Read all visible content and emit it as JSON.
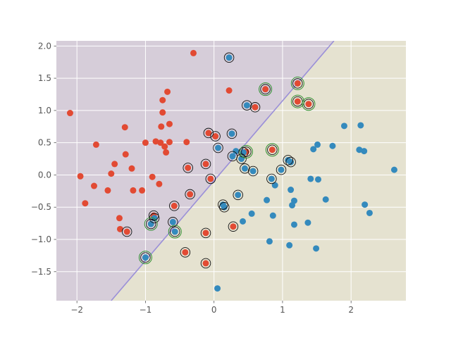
{
  "chart_data": {
    "type": "scatter",
    "title": "",
    "xlabel": "",
    "ylabel": "",
    "xlim": [
      -2.3,
      2.8
    ],
    "ylim": [
      -1.95,
      2.08
    ],
    "grid": true,
    "x_ticks": [
      -2,
      -1,
      0,
      1,
      2
    ],
    "y_ticks": [
      -1.5,
      -1.0,
      -0.5,
      0.0,
      0.5,
      1.0,
      1.5,
      2.0
    ],
    "x_tick_labels": [
      "−2",
      "−1",
      "0",
      "1",
      "2"
    ],
    "y_tick_labels": [
      "−1.5",
      "−1.0",
      "−0.5",
      "0.0",
      "0.5",
      "1.0",
      "1.5",
      "2.0"
    ],
    "decision_boundary": {
      "points": [
        [
          -1.5,
          -1.95
        ],
        [
          1.75,
          2.08
        ]
      ]
    },
    "regions": [
      {
        "class": "red",
        "side": "upper-left",
        "color": "#d6cdd9"
      },
      {
        "class": "blue",
        "side": "lower-right",
        "color": "#e5e2d0"
      }
    ],
    "colors": {
      "red": "#e24a33",
      "blue": "#348abd",
      "boundary": "#9a8fd8",
      "support_vector_ring": "#111111",
      "margin_error_ring": "#2f8f2f",
      "grid": "#ffffff"
    },
    "series": [
      {
        "color_key": "red",
        "points": [
          [
            -2.1,
            0.96
          ],
          [
            -1.95,
            -0.02
          ],
          [
            -1.88,
            -0.44
          ],
          [
            -1.75,
            -0.17
          ],
          [
            -1.72,
            0.47
          ],
          [
            -1.55,
            -0.24
          ],
          [
            -1.5,
            0.02
          ],
          [
            -1.45,
            0.17
          ],
          [
            -1.38,
            -0.67
          ],
          [
            -1.37,
            -0.84
          ],
          [
            -1.3,
            0.74
          ],
          [
            -1.29,
            0.32
          ],
          [
            -1.2,
            0.1
          ],
          [
            -1.18,
            -0.24
          ],
          [
            -1.05,
            -0.24
          ],
          [
            -1.0,
            0.5
          ],
          [
            -0.9,
            -0.03
          ],
          [
            -0.85,
            0.52
          ],
          [
            -0.8,
            -0.14
          ],
          [
            -0.78,
            0.5
          ],
          [
            -0.77,
            0.75
          ],
          [
            -0.75,
            1.16
          ],
          [
            -0.75,
            0.97
          ],
          [
            -0.72,
            0.44
          ],
          [
            -0.7,
            0.35
          ],
          [
            -0.68,
            1.29
          ],
          [
            -0.65,
            0.79
          ],
          [
            -0.65,
            0.51
          ],
          [
            -0.4,
            0.51
          ],
          [
            -0.3,
            1.89
          ],
          [
            -0.12,
            0.17
          ],
          [
            0.22,
            1.31
          ],
          [
            -1.27,
            -0.88
          ],
          [
            -0.88,
            -0.63
          ],
          [
            -0.58,
            -0.48
          ],
          [
            -0.42,
            -1.2
          ],
          [
            -0.38,
            0.11
          ],
          [
            -0.35,
            -0.3
          ],
          [
            -0.12,
            -0.9
          ],
          [
            -0.12,
            -1.37
          ],
          [
            -0.08,
            0.65
          ],
          [
            -0.05,
            -0.06
          ],
          [
            0.02,
            0.6
          ],
          [
            0.28,
            -0.8
          ],
          [
            0.47,
            0.36
          ],
          [
            0.6,
            1.05
          ],
          [
            0.75,
            1.33
          ],
          [
            0.85,
            0.39
          ],
          [
            1.22,
            1.14
          ],
          [
            1.38,
            1.1
          ],
          [
            1.22,
            1.42
          ]
        ]
      },
      {
        "color_key": "blue",
        "points": [
          [
            0.05,
            -1.76
          ],
          [
            0.22,
            1.82
          ],
          [
            0.26,
            0.64
          ],
          [
            0.32,
            0.37
          ],
          [
            0.4,
            0.25
          ],
          [
            0.45,
            0.1
          ],
          [
            0.48,
            1.08
          ],
          [
            0.57,
            0.06
          ],
          [
            0.13,
            -0.46
          ],
          [
            0.15,
            -0.5
          ],
          [
            0.35,
            -0.31
          ],
          [
            0.42,
            -0.72
          ],
          [
            0.55,
            -0.6
          ],
          [
            0.77,
            -0.39
          ],
          [
            0.81,
            -1.03
          ],
          [
            0.84,
            -0.06
          ],
          [
            0.86,
            -0.63
          ],
          [
            0.89,
            -0.16
          ],
          [
            0.98,
            0.08
          ],
          [
            1.08,
            0.23
          ],
          [
            1.1,
            -1.09
          ],
          [
            1.12,
            0.2
          ],
          [
            1.12,
            -0.23
          ],
          [
            1.14,
            -0.47
          ],
          [
            1.17,
            -0.4
          ],
          [
            1.17,
            -0.77
          ],
          [
            1.37,
            -0.74
          ],
          [
            1.41,
            -0.06
          ],
          [
            1.45,
            0.4
          ],
          [
            1.49,
            -1.14
          ],
          [
            1.51,
            0.47
          ],
          [
            1.52,
            -0.07
          ],
          [
            1.63,
            -0.38
          ],
          [
            1.73,
            0.45
          ],
          [
            1.9,
            0.76
          ],
          [
            2.12,
            0.39
          ],
          [
            2.14,
            0.77
          ],
          [
            2.19,
            0.37
          ],
          [
            2.2,
            -0.46
          ],
          [
            2.27,
            -0.59
          ],
          [
            2.63,
            0.08
          ],
          [
            -1.0,
            -1.28
          ],
          [
            -0.92,
            -0.76
          ],
          [
            -0.87,
            -0.67
          ],
          [
            -0.6,
            -0.73
          ],
          [
            -0.57,
            -0.88
          ],
          [
            0.06,
            0.42
          ],
          [
            0.27,
            0.29
          ],
          [
            0.43,
            0.35
          ]
        ]
      }
    ],
    "support_vectors": [
      [
        -1.27,
        -0.88
      ],
      [
        -0.88,
        -0.63
      ],
      [
        -0.58,
        -0.48
      ],
      [
        -0.42,
        -1.2
      ],
      [
        -0.38,
        0.11
      ],
      [
        -0.35,
        -0.3
      ],
      [
        -0.12,
        -0.9
      ],
      [
        -0.12,
        -1.37
      ],
      [
        -0.12,
        0.17
      ],
      [
        -0.08,
        0.65
      ],
      [
        -0.05,
        -0.06
      ],
      [
        0.02,
        0.6
      ],
      [
        0.28,
        -0.8
      ],
      [
        0.47,
        0.36
      ],
      [
        0.6,
        1.05
      ],
      [
        0.75,
        1.33
      ],
      [
        0.85,
        0.39
      ],
      [
        1.22,
        1.14
      ],
      [
        1.38,
        1.1
      ],
      [
        1.22,
        1.42
      ],
      [
        -1.0,
        -1.28
      ],
      [
        -0.92,
        -0.76
      ],
      [
        -0.87,
        -0.67
      ],
      [
        -0.6,
        -0.73
      ],
      [
        -0.57,
        -0.88
      ],
      [
        0.06,
        0.42
      ],
      [
        0.22,
        1.82
      ],
      [
        0.26,
        0.64
      ],
      [
        0.27,
        0.29
      ],
      [
        0.35,
        -0.31
      ],
      [
        0.4,
        0.25
      ],
      [
        0.43,
        0.35
      ],
      [
        0.45,
        0.1
      ],
      [
        0.48,
        1.08
      ],
      [
        0.57,
        0.06
      ],
      [
        0.13,
        -0.46
      ],
      [
        0.15,
        -0.5
      ],
      [
        0.84,
        -0.06
      ],
      [
        0.98,
        0.08
      ],
      [
        1.08,
        0.23
      ],
      [
        1.12,
        0.2
      ]
    ],
    "margin_errors": [
      [
        -1.0,
        -1.28
      ],
      [
        -0.92,
        -0.76
      ],
      [
        -0.57,
        -0.88
      ],
      [
        0.75,
        1.33
      ],
      [
        0.85,
        0.39
      ],
      [
        1.22,
        1.14
      ],
      [
        1.38,
        1.1
      ],
      [
        1.22,
        1.42
      ],
      [
        0.47,
        0.36
      ]
    ]
  }
}
